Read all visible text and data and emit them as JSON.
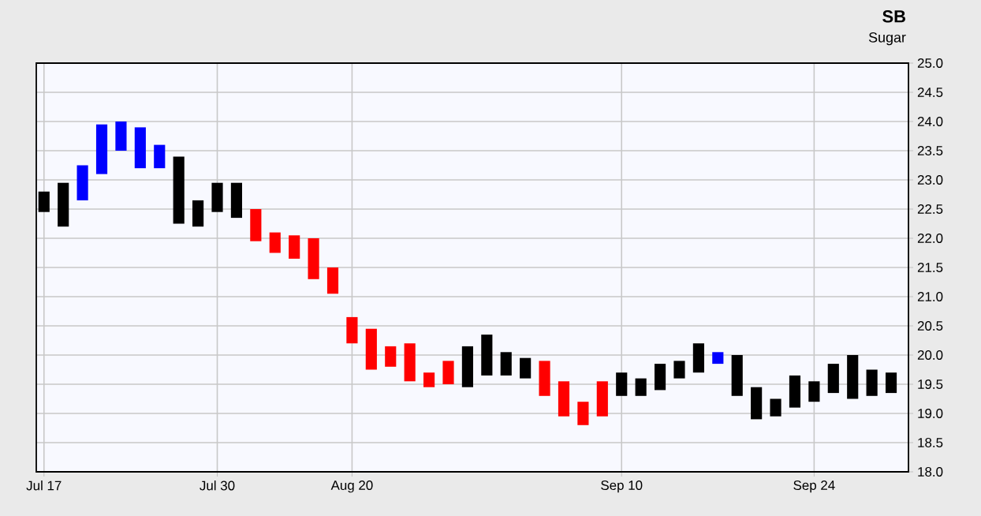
{
  "chart_data": {
    "type": "bar",
    "title": "SB",
    "subtitle": "Sugar",
    "categories": [
      "Jul 17",
      null,
      null,
      null,
      null,
      null,
      null,
      null,
      null,
      "Jul 30",
      null,
      null,
      null,
      null,
      null,
      null,
      "Aug 20",
      null,
      null,
      null,
      null,
      null,
      null,
      null,
      null,
      null,
      null,
      null,
      null,
      null,
      "Sep 10",
      null,
      null,
      null,
      null,
      null,
      null,
      null,
      null,
      null,
      "Sep 24",
      null,
      null,
      null,
      null
    ],
    "base": [
      22.45,
      22.2,
      22.65,
      23.1,
      23.5,
      23.2,
      23.2,
      22.25,
      22.2,
      22.45,
      22.35,
      21.95,
      21.75,
      21.65,
      21.3,
      21.05,
      20.2,
      19.75,
      19.8,
      19.55,
      19.45,
      19.5,
      19.45,
      19.65,
      19.65,
      19.6,
      19.3,
      18.95,
      18.8,
      18.95,
      19.3,
      19.3,
      19.4,
      19.6,
      19.7,
      19.85,
      19.3,
      18.9,
      18.95,
      19.1,
      19.2,
      19.35,
      19.25,
      19.3,
      19.35
    ],
    "values": [
      0.35,
      0.75,
      0.6,
      0.85,
      0.5,
      0.7,
      0.4,
      1.15,
      0.45,
      0.5,
      0.6,
      0.55,
      0.35,
      0.4,
      0.7,
      0.45,
      0.45,
      0.7,
      0.35,
      0.65,
      0.25,
      0.4,
      0.7,
      0.7,
      0.4,
      0.35,
      0.6,
      0.6,
      0.4,
      0.6,
      0.4,
      0.3,
      0.45,
      0.3,
      0.5,
      0.2,
      0.7,
      0.55,
      0.3,
      0.55,
      0.35,
      0.5,
      0.75,
      0.45,
      0.35
    ],
    "colors": [
      "#000000",
      "#000000",
      "#0000ff",
      "#0000ff",
      "#0000ff",
      "#0000ff",
      "#0000ff",
      "#000000",
      "#000000",
      "#000000",
      "#000000",
      "#ff0000",
      "#ff0000",
      "#ff0000",
      "#ff0000",
      "#ff0000",
      "#ff0000",
      "#ff0000",
      "#ff0000",
      "#ff0000",
      "#ff0000",
      "#ff0000",
      "#000000",
      "#000000",
      "#000000",
      "#000000",
      "#ff0000",
      "#ff0000",
      "#ff0000",
      "#ff0000",
      "#000000",
      "#000000",
      "#000000",
      "#000000",
      "#000000",
      "#0000ff",
      "#000000",
      "#000000",
      "#000000",
      "#000000",
      "#000000",
      "#000000",
      "#000000",
      "#000000",
      "#000000"
    ],
    "ylim": [
      18.0,
      25.0
    ],
    "yticks": [
      {
        "value": 18.0,
        "label": "18.0"
      },
      {
        "value": 18.5,
        "label": "18.5"
      },
      {
        "value": 19.0,
        "label": "19.0"
      },
      {
        "value": 19.5,
        "label": "19.5"
      },
      {
        "value": 20.0,
        "label": "20.0"
      },
      {
        "value": 20.5,
        "label": "20.5"
      },
      {
        "value": 21.0,
        "label": "21.0"
      },
      {
        "value": 21.5,
        "label": "21.5"
      },
      {
        "value": 22.0,
        "label": "22.0"
      },
      {
        "value": 22.5,
        "label": "22.5"
      },
      {
        "value": 23.0,
        "label": "23.0"
      },
      {
        "value": 23.5,
        "label": "23.5"
      },
      {
        "value": 24.0,
        "label": "24.0"
      },
      {
        "value": 24.5,
        "label": "24.5"
      },
      {
        "value": 25.0,
        "label": "25.0"
      }
    ],
    "grid": true
  }
}
